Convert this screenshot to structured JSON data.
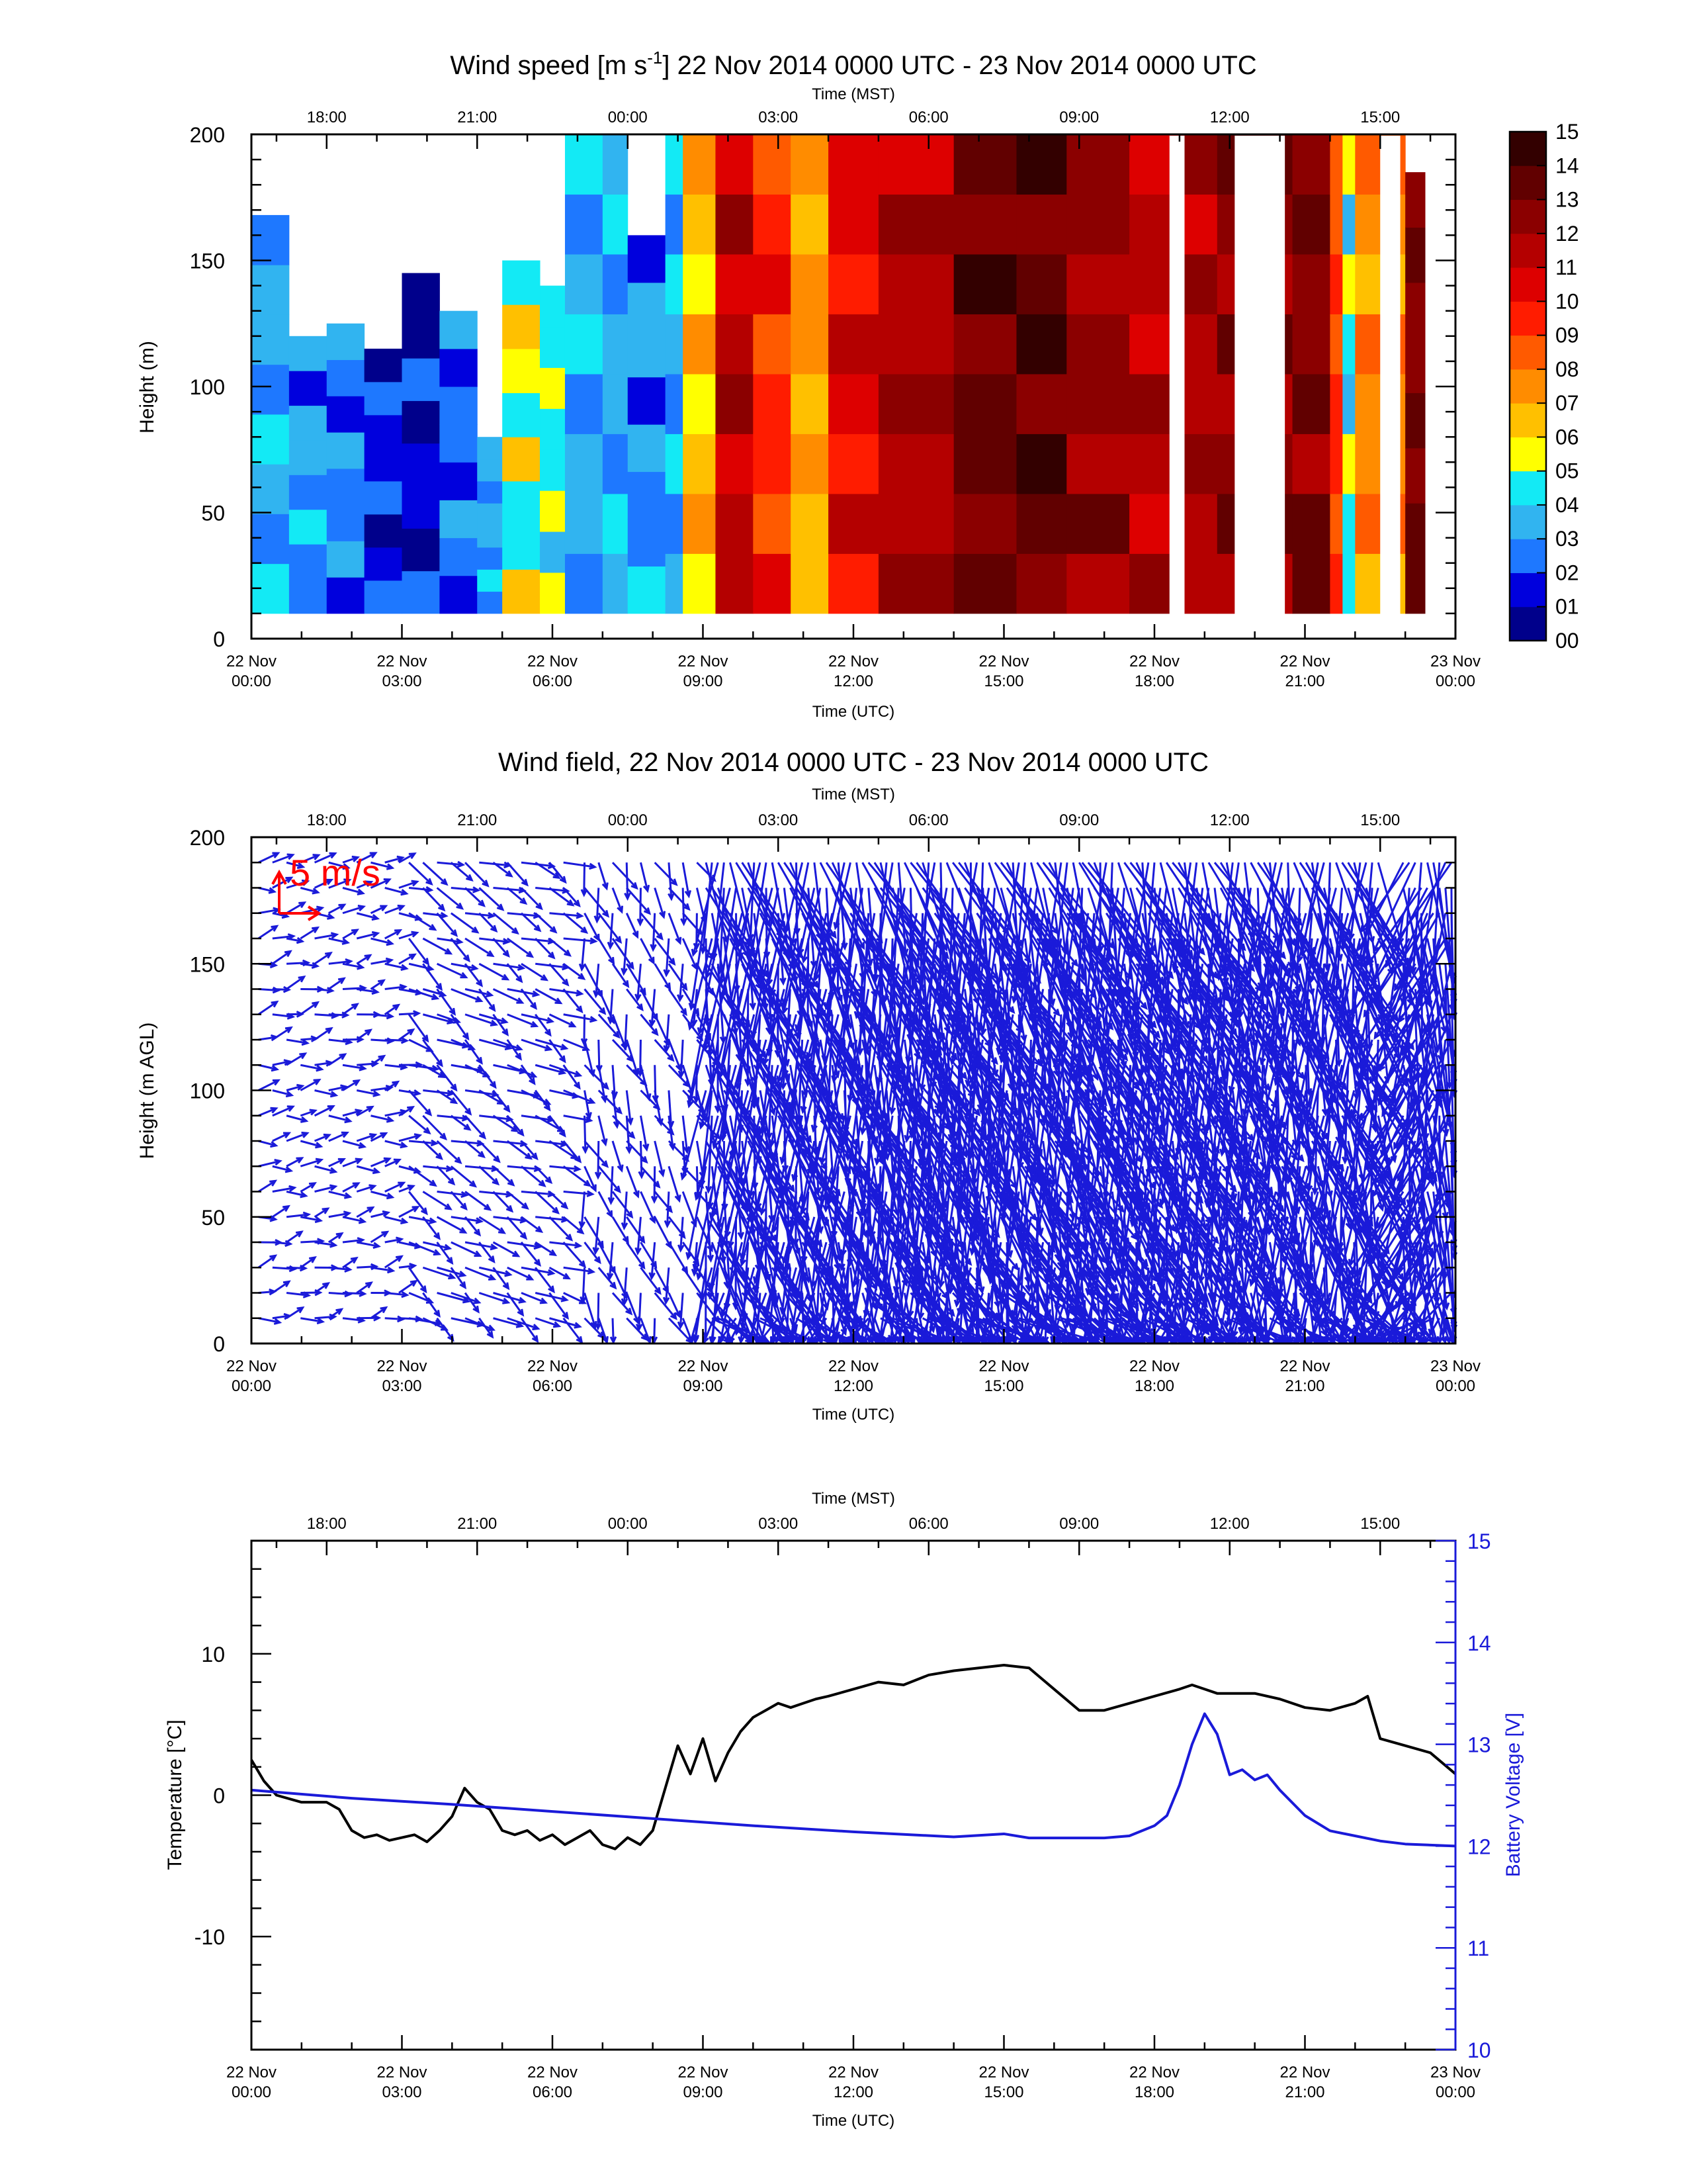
{
  "utc_ticks": [
    {
      "d": "22 Nov",
      "t": "00:00"
    },
    {
      "d": "22 Nov",
      "t": "03:00"
    },
    {
      "d": "22 Nov",
      "t": "06:00"
    },
    {
      "d": "22 Nov",
      "t": "09:00"
    },
    {
      "d": "22 Nov",
      "t": "12:00"
    },
    {
      "d": "22 Nov",
      "t": "15:00"
    },
    {
      "d": "22 Nov",
      "t": "18:00"
    },
    {
      "d": "22 Nov",
      "t": "21:00"
    },
    {
      "d": "23 Nov",
      "t": "00:00"
    }
  ],
  "mst_ticks": [
    "18:00",
    "21:00",
    "00:00",
    "03:00",
    "06:00",
    "09:00",
    "12:00",
    "15:00"
  ],
  "chart_data": [
    {
      "type": "heatmap",
      "title_pre": "Wind speed [m s",
      "title_sup": "-1",
      "title_post": "] 22 Nov 2014 0000 UTC - 23 Nov 2014 0000 UTC",
      "top_axis_label": "Time (MST)",
      "xlabel": "Time (UTC)",
      "ylabel": "Height (m)",
      "xlim_hours_utc": [
        0,
        24
      ],
      "ylim": [
        0,
        200
      ],
      "yticks": [
        0,
        50,
        100,
        150,
        200
      ],
      "colorbar": {
        "labels": [
          "00",
          "01",
          "02",
          "03",
          "04",
          "05",
          "06",
          "07",
          "08",
          "09",
          "10",
          "11",
          "12",
          "13",
          "14",
          "15"
        ],
        "colors": [
          "#00008b",
          "#0000dd",
          "#1e78ff",
          "#31b4f0",
          "#13eaf5",
          "#ffff00",
          "#ffc000",
          "#ff8c00",
          "#ff5a00",
          "#ff1c00",
          "#dd0000",
          "#b40000",
          "#8b0000",
          "#610000",
          "#330000"
        ]
      },
      "columns": [
        {
          "t": 0.0,
          "v": 3.3,
          "top": 168
        },
        {
          "t": 0.75,
          "v": 3.0,
          "top": 120
        },
        {
          "t": 1.5,
          "v": 2.6,
          "top": 125
        },
        {
          "t": 2.25,
          "v": 1.6,
          "top": 115
        },
        {
          "t": 3.0,
          "v": 1.3,
          "top": 145
        },
        {
          "t": 3.75,
          "v": 2.2,
          "top": 130
        },
        {
          "t": 4.5,
          "v": 3.1,
          "top": 80
        },
        {
          "t": 5.0,
          "v": 5.2,
          "top": 150
        },
        {
          "t": 5.75,
          "v": 4.8,
          "top": 140
        },
        {
          "t": 6.25,
          "v": 3.4,
          "top": 200
        },
        {
          "t": 7.0,
          "v": 3.3,
          "top": 200
        },
        {
          "t": 7.5,
          "v": 3.0,
          "top": 160
        },
        {
          "t": 8.25,
          "v": 3.6,
          "top": 200
        },
        {
          "t": 8.6,
          "v": 6.5,
          "top": 200
        },
        {
          "t": 9.25,
          "v": 11.5,
          "top": 200
        },
        {
          "t": 10.0,
          "v": 9.5,
          "top": 200
        },
        {
          "t": 10.75,
          "v": 7.0,
          "top": 200
        },
        {
          "t": 11.5,
          "v": 10.5,
          "top": 200
        },
        {
          "t": 12.5,
          "v": 11.8,
          "top": 200
        },
        {
          "t": 14.0,
          "v": 13.2,
          "top": 200
        },
        {
          "t": 15.25,
          "v": 13.6,
          "top": 200
        },
        {
          "t": 16.25,
          "v": 12.2,
          "top": 200
        },
        {
          "t": 17.5,
          "v": 11.5,
          "top": 200
        },
        {
          "t": 18.5,
          "v": 11.8,
          "top": 200
        },
        {
          "t": 19.25,
          "v": 12.5,
          "top": 200
        },
        {
          "t": 20.75,
          "v": 12.8,
          "top": 200
        },
        {
          "t": 21.5,
          "v": 9.0,
          "top": 200
        },
        {
          "t": 21.75,
          "v": 4.5,
          "top": 200
        },
        {
          "t": 22.0,
          "v": 7.5,
          "top": 200
        },
        {
          "t": 23.0,
          "v": 13.0,
          "top": 185
        }
      ],
      "gaps_hours": [
        [
          18.3,
          18.6
        ],
        [
          19.6,
          20.6
        ],
        [
          22.5,
          22.9
        ],
        [
          23.4,
          24.0
        ]
      ],
      "bottom_gap_m": 10
    },
    {
      "type": "vector",
      "title": "Wind field, 22 Nov 2014 0000 UTC - 23 Nov 2014 0000 UTC",
      "top_axis_label": "Time (MST)",
      "xlabel": "Time (UTC)",
      "ylabel": "Height (m AGL)",
      "ylim": [
        0,
        200
      ],
      "yticks": [
        0,
        50,
        100,
        150,
        200
      ],
      "reference_arrow_label": "5 m/s",
      "reference_color": "#ff0000",
      "arrow_color": "#1a1ad9",
      "regimes": [
        {
          "t0": 0.0,
          "t1": 3.0,
          "speed": 2.2,
          "dir": 260
        },
        {
          "t0": 3.0,
          "t1": 6.5,
          "speed": 3.2,
          "dir": 300
        },
        {
          "t0": 6.5,
          "t1": 9.0,
          "speed": 3.6,
          "dir": 340
        },
        {
          "t0": 9.0,
          "t1": 12.0,
          "speed": 9.5,
          "dir": 350
        },
        {
          "t0": 12.0,
          "t1": 16.5,
          "speed": 12.5,
          "dir": 345
        },
        {
          "t0": 16.5,
          "t1": 20.0,
          "speed": 11.5,
          "dir": 345
        },
        {
          "t0": 20.0,
          "t1": 22.5,
          "speed": 10.5,
          "dir": 350
        },
        {
          "t0": 22.9,
          "t1": 24.0,
          "speed": 12.0,
          "dir": 10
        }
      ]
    },
    {
      "type": "line",
      "top_axis_label": "Time (MST)",
      "xlabel": "Time (UTC)",
      "ylabel": "Temperature [°C]",
      "y2label": "Battery Voltage [V]",
      "ylim": [
        -18,
        18
      ],
      "yticks": [
        -10,
        0,
        10
      ],
      "y2lim": [
        10,
        15
      ],
      "y2ticks": [
        10,
        11,
        12,
        13,
        14,
        15
      ],
      "series": [
        {
          "axis": "left",
          "color": "#000000",
          "x": [
            0,
            0.25,
            0.5,
            1.0,
            1.5,
            1.75,
            2.0,
            2.25,
            2.5,
            2.75,
            3.0,
            3.25,
            3.5,
            3.75,
            4.0,
            4.25,
            4.5,
            4.75,
            5.0,
            5.25,
            5.5,
            5.75,
            6.0,
            6.25,
            6.5,
            6.75,
            7.0,
            7.25,
            7.5,
            7.75,
            8.0,
            8.25,
            8.5,
            8.75,
            9.0,
            9.25,
            9.5,
            9.75,
            10.0,
            10.25,
            10.5,
            10.75,
            11.0,
            11.25,
            11.5,
            12.0,
            12.5,
            13.0,
            13.5,
            14.0,
            14.5,
            15.0,
            15.5,
            16.0,
            16.5,
            17.0,
            17.5,
            18.0,
            18.5,
            18.75,
            19.0,
            19.25,
            20.0,
            20.5,
            21.0,
            21.5,
            22.0,
            22.25,
            22.5,
            23.0,
            23.5,
            24.0
          ],
          "y": [
            2.5,
            1.0,
            0.0,
            -0.5,
            -0.5,
            -1.0,
            -2.5,
            -3.0,
            -2.8,
            -3.2,
            -3.0,
            -2.8,
            -3.3,
            -2.5,
            -1.5,
            0.5,
            -0.5,
            -1.0,
            -2.5,
            -2.8,
            -2.5,
            -3.2,
            -2.8,
            -3.5,
            -3.0,
            -2.5,
            -3.5,
            -3.8,
            -3.0,
            -3.5,
            -2.5,
            0.5,
            3.5,
            1.5,
            4.0,
            1.0,
            3.0,
            4.5,
            5.5,
            6.0,
            6.5,
            6.2,
            6.5,
            6.8,
            7.0,
            7.5,
            8.0,
            7.8,
            8.5,
            8.8,
            9.0,
            9.2,
            9.0,
            7.5,
            6.0,
            6.0,
            6.5,
            7.0,
            7.5,
            7.8,
            7.5,
            7.2,
            7.2,
            6.8,
            6.2,
            6.0,
            6.5,
            7.0,
            4.0,
            3.5,
            3.0,
            1.5
          ]
        },
        {
          "axis": "right",
          "color": "#1a1ad9",
          "x": [
            0,
            2,
            4,
            6,
            8,
            10,
            12,
            14,
            15,
            15.5,
            16,
            17,
            17.5,
            18,
            18.25,
            18.5,
            18.75,
            19.0,
            19.25,
            19.5,
            19.75,
            20.0,
            20.25,
            20.5,
            21.0,
            21.5,
            22.0,
            22.5,
            23.0,
            24.0
          ],
          "y": [
            12.55,
            12.47,
            12.41,
            12.34,
            12.27,
            12.2,
            12.14,
            12.09,
            12.12,
            12.08,
            12.08,
            12.08,
            12.1,
            12.2,
            12.3,
            12.6,
            13.0,
            13.3,
            13.1,
            12.7,
            12.75,
            12.65,
            12.7,
            12.55,
            12.3,
            12.15,
            12.1,
            12.05,
            12.02,
            12.0
          ]
        }
      ]
    }
  ]
}
